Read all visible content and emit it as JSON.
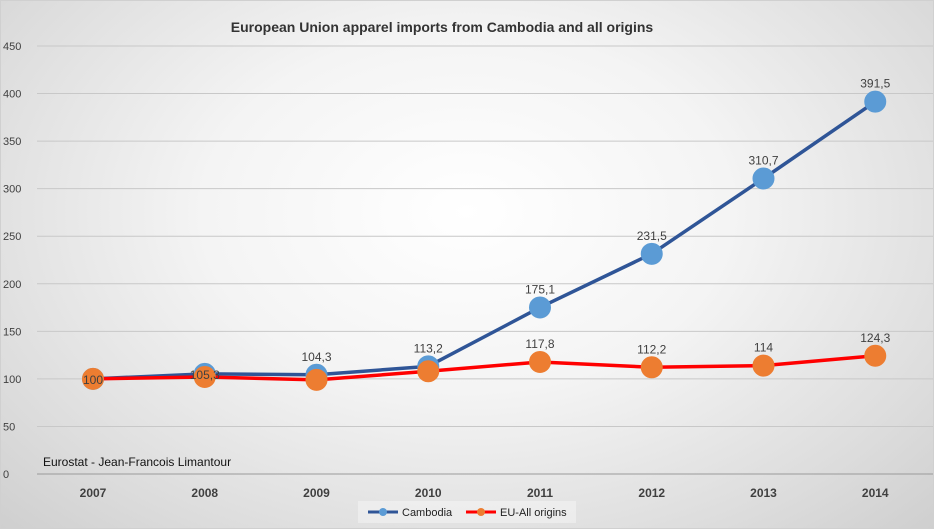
{
  "chart_data": {
    "type": "line",
    "title": "European Union apparel imports from Cambodia and all origins",
    "categories": [
      "2007",
      "2008",
      "2009",
      "2010",
      "2011",
      "2012",
      "2013",
      "2014"
    ],
    "series": [
      {
        "name": "Cambodia",
        "values": [
          100,
          105.3,
          104.3,
          113.2,
          175.1,
          231.5,
          310.7,
          391.5
        ],
        "labels": [
          "",
          "105,3",
          "104,3",
          "113,2",
          "175,1",
          "231,5",
          "310,7",
          "391,5"
        ],
        "line_color": "#2f5597",
        "marker_color": "#5b9bd5"
      },
      {
        "name": "EU-All origins",
        "values": [
          100,
          102,
          99,
          108,
          117.8,
          112.2,
          114,
          124.3
        ],
        "labels": [
          "100",
          "",
          "",
          "",
          "117,8",
          "112,2",
          "114",
          "124,3"
        ],
        "line_color": "#ff0000",
        "marker_color": "#ed7d31"
      }
    ],
    "ylim": [
      0,
      450
    ],
    "yticks": [
      0,
      50,
      100,
      150,
      200,
      250,
      300,
      350,
      400,
      450
    ],
    "grid": true,
    "legend_position": "bottom",
    "annotation": "Eurostat - Jean-Francois Limantour"
  }
}
